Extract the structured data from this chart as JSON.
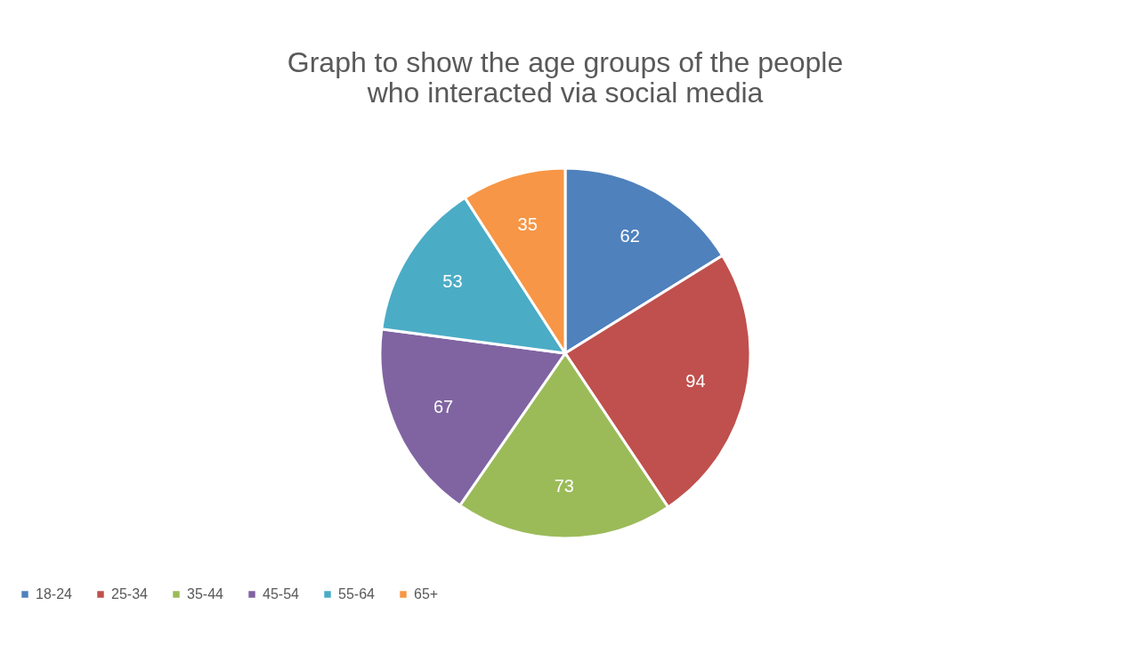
{
  "chart_data": {
    "type": "pie",
    "title": "Graph to show the age groups of the people\nwho interacted via social media",
    "categories": [
      "18-24",
      "25-34",
      "35-44",
      "45-54",
      "55-64",
      "65+"
    ],
    "values": [
      62,
      94,
      73,
      67,
      53,
      35
    ],
    "colors": [
      "#4f81bd",
      "#c0504d",
      "#9bbb59",
      "#8064a2",
      "#4bacc6",
      "#f79646"
    ],
    "data_labels": true,
    "legend": "bottom"
  }
}
